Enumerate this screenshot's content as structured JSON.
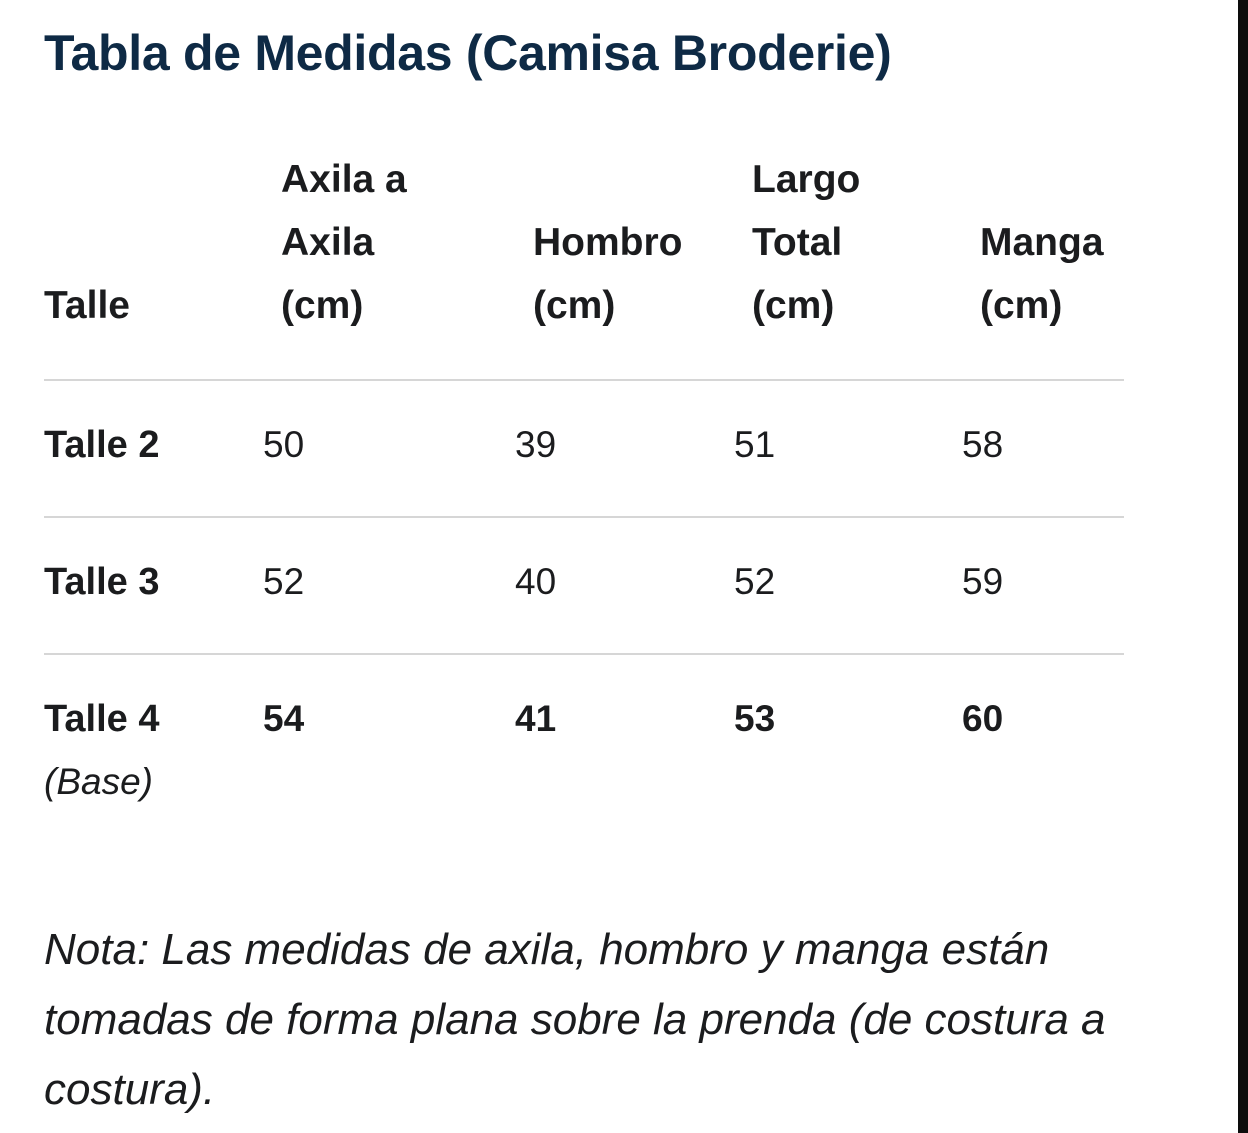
{
  "title": "Tabla de Medidas (Camisa Broderie)",
  "table": {
    "headers": [
      [
        "Talle"
      ],
      [
        "Axila a",
        "Axila",
        "(cm)"
      ],
      [
        "Hombro",
        "(cm)"
      ],
      [
        "Largo",
        "Total",
        "(cm)"
      ],
      [
        "Manga",
        "(cm)"
      ]
    ],
    "rows": [
      {
        "label": "Talle 2",
        "sublabel": "",
        "values": [
          "50",
          "39",
          "51",
          "58"
        ]
      },
      {
        "label": "Talle 3",
        "sublabel": "",
        "values": [
          "52",
          "40",
          "52",
          "59"
        ]
      },
      {
        "label": "Talle 4",
        "sublabel": "(Base)",
        "values": [
          "54",
          "41",
          "53",
          "60"
        ]
      }
    ]
  },
  "note": "Nota: Las medidas de axila, hombro y manga están tomadas de forma plana sobre la prenda (de costura a costura).",
  "colors": {
    "title": "#0e2a45",
    "text": "#1b1c1e",
    "divider": "#d6d6d6",
    "background": "#ffffff"
  }
}
